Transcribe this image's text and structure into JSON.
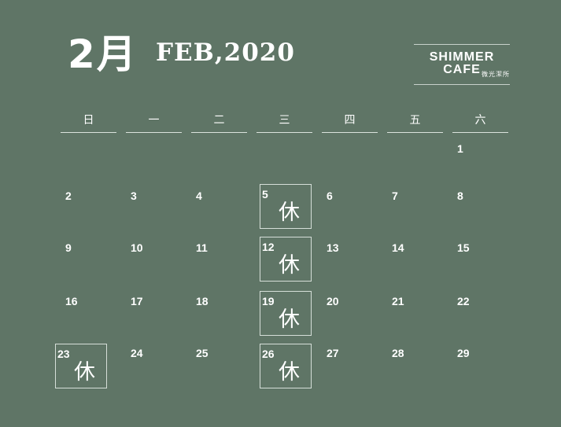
{
  "header": {
    "month_number": "2月",
    "month_english": "FEB,2020"
  },
  "brand": {
    "name": "SHIMMER CAFE",
    "subtitle": "微光潔所"
  },
  "calendar": {
    "weekdays": [
      "日",
      "一",
      "二",
      "三",
      "四",
      "五",
      "六"
    ],
    "days": [
      {
        "num": "1",
        "col": 6,
        "row": 0,
        "closed": false
      },
      {
        "num": "2",
        "col": 0,
        "row": 1,
        "closed": false
      },
      {
        "num": "3",
        "col": 1,
        "row": 1,
        "closed": false
      },
      {
        "num": "4",
        "col": 2,
        "row": 1,
        "closed": false
      },
      {
        "num": "5",
        "col": 3,
        "row": 1,
        "closed": true
      },
      {
        "num": "6",
        "col": 4,
        "row": 1,
        "closed": false
      },
      {
        "num": "7",
        "col": 5,
        "row": 1,
        "closed": false
      },
      {
        "num": "8",
        "col": 6,
        "row": 1,
        "closed": false
      },
      {
        "num": "9",
        "col": 0,
        "row": 2,
        "closed": false
      },
      {
        "num": "10",
        "col": 1,
        "row": 2,
        "closed": false
      },
      {
        "num": "11",
        "col": 2,
        "row": 2,
        "closed": false
      },
      {
        "num": "12",
        "col": 3,
        "row": 2,
        "closed": true
      },
      {
        "num": "13",
        "col": 4,
        "row": 2,
        "closed": false
      },
      {
        "num": "14",
        "col": 5,
        "row": 2,
        "closed": false
      },
      {
        "num": "15",
        "col": 6,
        "row": 2,
        "closed": false
      },
      {
        "num": "16",
        "col": 0,
        "row": 3,
        "closed": false
      },
      {
        "num": "17",
        "col": 1,
        "row": 3,
        "closed": false
      },
      {
        "num": "18",
        "col": 2,
        "row": 3,
        "closed": false
      },
      {
        "num": "19",
        "col": 3,
        "row": 3,
        "closed": true
      },
      {
        "num": "20",
        "col": 4,
        "row": 3,
        "closed": false
      },
      {
        "num": "21",
        "col": 5,
        "row": 3,
        "closed": false
      },
      {
        "num": "22",
        "col": 6,
        "row": 3,
        "closed": false
      },
      {
        "num": "23",
        "col": 0,
        "row": 4,
        "closed": true
      },
      {
        "num": "24",
        "col": 1,
        "row": 4,
        "closed": false
      },
      {
        "num": "25",
        "col": 2,
        "row": 4,
        "closed": false
      },
      {
        "num": "26",
        "col": 3,
        "row": 4,
        "closed": true
      },
      {
        "num": "27",
        "col": 4,
        "row": 4,
        "closed": false
      },
      {
        "num": "28",
        "col": 5,
        "row": 4,
        "closed": false
      },
      {
        "num": "29",
        "col": 6,
        "row": 4,
        "closed": false
      }
    ],
    "closed_label": "休"
  },
  "colors": {
    "background": "#5f7566",
    "text": "#ffffff",
    "rule": "#dbe3dd"
  }
}
